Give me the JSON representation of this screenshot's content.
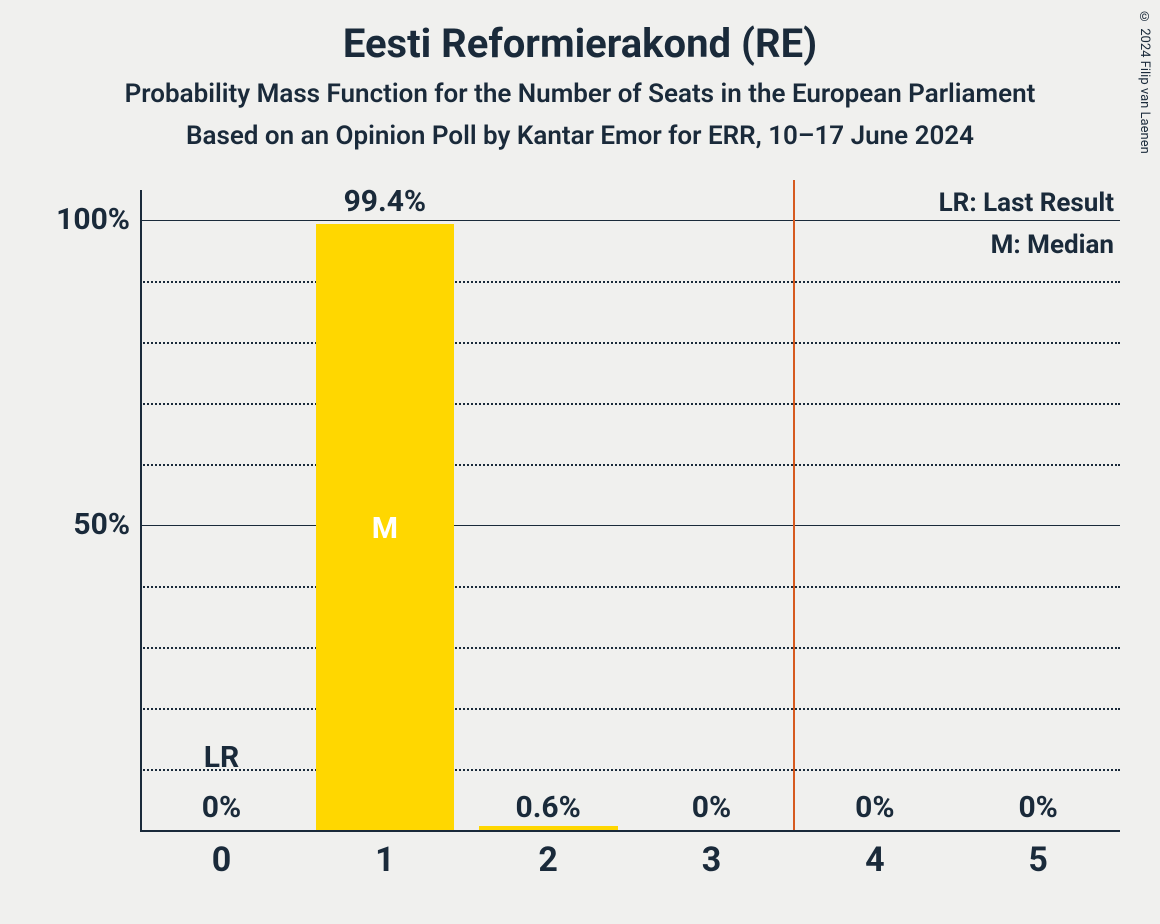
{
  "copyright": "© 2024 Filip van Laenen",
  "title": "Eesti Reformierakond (RE)",
  "subtitle1": "Probability Mass Function for the Number of Seats in the European Parliament",
  "subtitle2": "Based on an Opinion Poll by Kantar Emor for ERR, 10–17 June 2024",
  "chart": {
    "type": "bar",
    "categories": [
      "0",
      "1",
      "2",
      "3",
      "4",
      "5"
    ],
    "values": [
      0,
      99.4,
      0.6,
      0,
      0,
      0
    ],
    "value_labels": [
      "0%",
      "99.4%",
      "0.6%",
      "0%",
      "0%",
      "0%"
    ],
    "median_index": 1,
    "median_label": "M",
    "lr_index": 0,
    "lr_label": "LR",
    "lr_line_position": 3.5,
    "bar_color": "#ffd700",
    "median_text_color": "#ffffff",
    "annotation_color": "#1a2a3a",
    "lr_line_color": "#d65a1f",
    "y_ticks_major": [
      0,
      50,
      100
    ],
    "y_tick_labels": [
      "50%",
      "100%"
    ],
    "y_ticks_minor": [
      10,
      20,
      30,
      40,
      60,
      70,
      80,
      90
    ],
    "ylim": [
      0,
      100
    ],
    "bar_width_ratio": 0.85,
    "background_color": "#f0f0ee"
  },
  "legend": {
    "lr": "LR: Last Result",
    "m": "M: Median"
  }
}
